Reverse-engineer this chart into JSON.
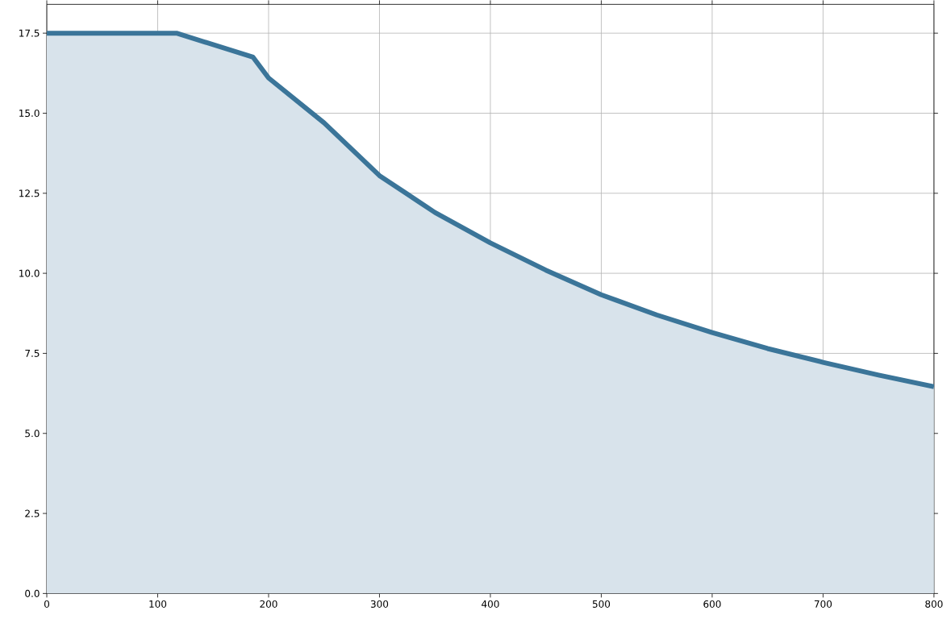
{
  "chart_data": {
    "type": "area",
    "xlim": [
      0,
      800
    ],
    "ylim": [
      0,
      18.4
    ],
    "xticks": [
      0,
      100,
      200,
      300,
      400,
      500,
      600,
      700,
      800
    ],
    "yticks": [
      {
        "value": 0,
        "label": "0.0"
      },
      {
        "value": 2.5,
        "label": "2.5"
      },
      {
        "value": 5,
        "label": "5.0"
      },
      {
        "value": 7.5,
        "label": "7.5"
      },
      {
        "value": 10,
        "label": "10.0"
      },
      {
        "value": 12.5,
        "label": "12.5"
      },
      {
        "value": 15,
        "label": "15.0"
      },
      {
        "value": 17.5,
        "label": "17.5"
      }
    ],
    "grid": true,
    "series": [
      {
        "color": "#3b7599",
        "x": [
          0,
          117,
          186,
          200,
          250,
          300,
          350,
          400,
          450,
          500,
          550,
          600,
          650,
          700,
          750,
          800
        ],
        "values": [
          17.5,
          17.5,
          16.75,
          16.1,
          14.7,
          13.05,
          11.9,
          10.95,
          10.1,
          9.33,
          8.7,
          8.15,
          7.65,
          7.22,
          6.82,
          6.46
        ]
      }
    ]
  }
}
